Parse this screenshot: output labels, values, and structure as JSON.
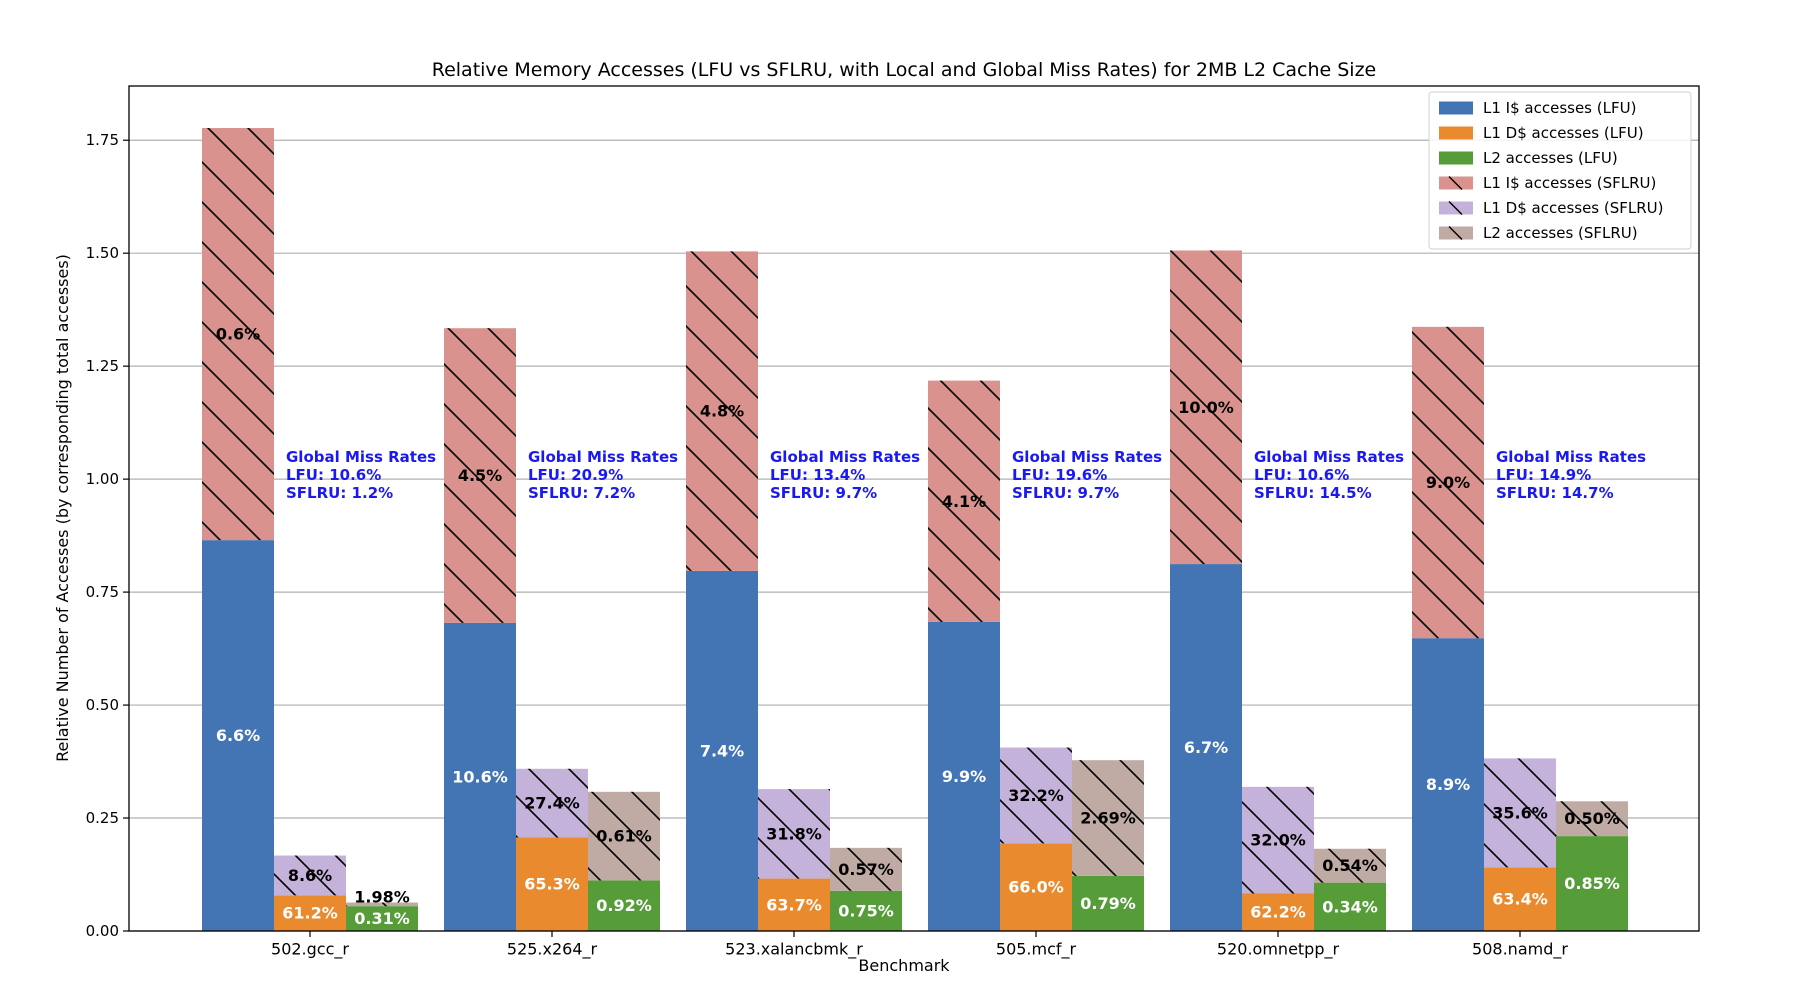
{
  "chart_data": {
    "type": "bar",
    "title": "Relative Memory Accesses (LFU vs SFLRU, with Local and Global Miss Rates) for 2MB L2 Cache Size",
    "xlabel": "Benchmark",
    "ylabel": "Relative Number of Accesses (by corresponding total accesses)",
    "ylim": [
      0,
      1.87
    ],
    "yticks": [
      "0.00",
      "0.25",
      "0.50",
      "0.75",
      "1.00",
      "1.25",
      "1.50",
      "1.75"
    ],
    "ytick_values": [
      0,
      0.25,
      0.5,
      0.75,
      1.0,
      1.25,
      1.5,
      1.75
    ],
    "grid": "horizontal",
    "legend_position": "top-right",
    "categories": [
      "502.gcc_r",
      "525.x264_r",
      "523.xalancbmk_r",
      "505.mcf_r",
      "520.omnetpp_r",
      "508.namd_r"
    ],
    "colors": {
      "l1i_lfu": "#4374b3",
      "l1d_lfu": "#ea8a2e",
      "l2_lfu": "#569d3a",
      "l1i_sflru": "#d9928d",
      "l1d_sflru": "#c4b2da",
      "l2_sflru": "#bfaaa4",
      "global": "#1a1af0"
    },
    "series": [
      {
        "name": "L1 I$ accesses (LFU)",
        "values": [
          0.865,
          0.682,
          0.797,
          0.684,
          0.812,
          0.648
        ]
      },
      {
        "name": "L1 D$ accesses (LFU)",
        "values": [
          0.079,
          0.207,
          0.116,
          0.194,
          0.083,
          0.141
        ]
      },
      {
        "name": "L2 accesses (LFU)",
        "values": [
          0.055,
          0.112,
          0.089,
          0.122,
          0.107,
          0.21
        ]
      },
      {
        "name": "L1 I$ accesses (SFLRU)",
        "values": [
          0.912,
          0.652,
          0.707,
          0.534,
          0.694,
          0.689
        ]
      },
      {
        "name": "L1 D$ accesses (SFLRU)",
        "values": [
          0.088,
          0.152,
          0.198,
          0.212,
          0.236,
          0.241
        ]
      },
      {
        "name": "L2 accesses (SFLRU)",
        "values": [
          0.008,
          0.196,
          0.095,
          0.256,
          0.075,
          0.077
        ]
      }
    ],
    "lfu_labels": {
      "l1i": [
        "6.6%",
        "10.6%",
        "7.4%",
        "9.9%",
        "6.7%",
        "8.9%"
      ],
      "l1d": [
        "61.2%",
        "65.3%",
        "63.7%",
        "66.0%",
        "62.2%",
        "63.4%"
      ],
      "l2": [
        "0.31%",
        "0.92%",
        "0.75%",
        "0.79%",
        "0.34%",
        "0.85%"
      ]
    },
    "sflru_labels": {
      "l1i": [
        "0.6%",
        "4.5%",
        "4.8%",
        "4.1%",
        "10.0%",
        "9.0%"
      ],
      "l1d": [
        "8.6%",
        "27.4%",
        "31.8%",
        "32.2%",
        "32.0%",
        "35.6%"
      ],
      "l2": [
        "1.98%",
        "0.61%",
        "0.57%",
        "2.69%",
        "0.54%",
        "0.50%"
      ]
    },
    "global_miss_rates": {
      "heading": "Global Miss Rates",
      "lfu": [
        "LFU: 10.6%",
        "LFU: 20.9%",
        "LFU: 13.4%",
        "LFU: 19.6%",
        "LFU: 10.6%",
        "LFU: 14.9%"
      ],
      "sflru": [
        "SFLRU: 1.2%",
        "SFLRU: 7.2%",
        "SFLRU: 9.7%",
        "SFLRU: 9.7%",
        "SFLRU: 14.5%",
        "SFLRU: 14.7%"
      ]
    }
  }
}
